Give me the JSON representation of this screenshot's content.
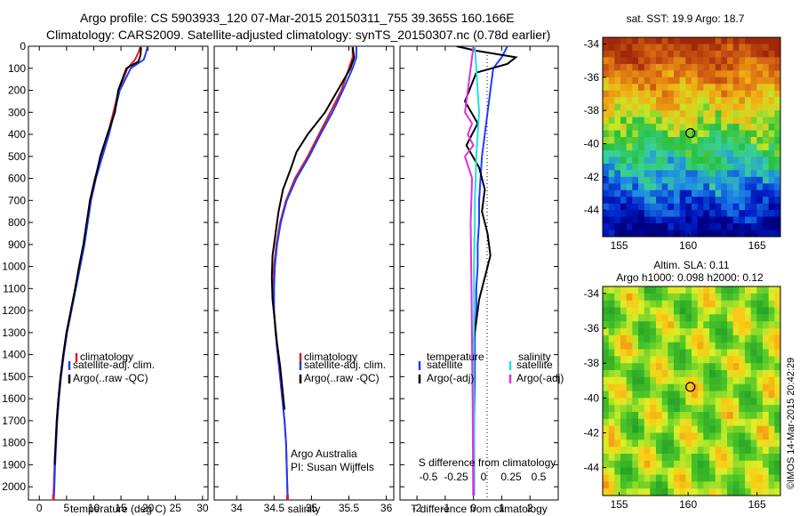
{
  "header": {
    "line1": "Argo profile: CS 5903933_120 07-Mar-2015 20150311_755 39.365S 160.166E",
    "line2": "Climatology: CARS2009. Satellite-adjusted climatology: synTS_20150307.nc (0.78d earlier)"
  },
  "map_titles": {
    "sst": "sat. SST: 19.9 Argo: 18.7",
    "sla_line1": "Altim. SLA: 0.11",
    "sla_line2": "Argo h1000: 0.098 h2000: 0.12"
  },
  "watermark": "©IMOS 14-Mar-2015 20:42:29",
  "credit": {
    "line1": "Argo Australia",
    "line2": "PI: Susan Wijffels"
  },
  "colors": {
    "climatology": "#e41a1c",
    "satellite": "#1f3cff",
    "argo": "#000000",
    "sat_salinity": "#22e0e0",
    "argo_salinity_adj": "#e030e0"
  },
  "icons": {
    "float_marker": "circle-marker-icon"
  },
  "chart_data": [
    {
      "type": "line",
      "panel": "temperature",
      "xlabel": "temperature (deg C)",
      "ylabel": "",
      "xlim": [
        -2,
        31
      ],
      "ylim": [
        2060,
        0
      ],
      "xticks": [
        0,
        5,
        10,
        15,
        20,
        25,
        30
      ],
      "yticks": [
        0,
        100,
        200,
        300,
        400,
        500,
        600,
        700,
        800,
        900,
        1000,
        1100,
        1200,
        1300,
        1400,
        1500,
        1600,
        1700,
        1800,
        1900,
        2000
      ],
      "legend": [
        "climatology",
        "satellite-adj. clim.",
        "Argo(..raw -QC)"
      ],
      "series": [
        {
          "name": "climatology",
          "color": "#e41a1c",
          "x": [
            18.6,
            18.2,
            17.6,
            16.2,
            14.6,
            13.6,
            12.6,
            11.4,
            10.2,
            9.3,
            8.8,
            8.2,
            7.4,
            6.6,
            5.8,
            5.0,
            4.4,
            3.9,
            3.5,
            3.2,
            3.0,
            2.8,
            2.6
          ],
          "y": [
            0,
            30,
            60,
            100,
            200,
            300,
            400,
            500,
            600,
            700,
            800,
            900,
            1000,
            1100,
            1200,
            1300,
            1400,
            1500,
            1600,
            1700,
            1800,
            1900,
            2040
          ]
        },
        {
          "name": "satellite-adj. clim.",
          "color": "#1f3cff",
          "x": [
            19.9,
            19.6,
            19.2,
            16.8,
            14.8,
            13.8,
            12.8,
            11.6,
            10.4,
            9.5,
            8.9,
            8.3,
            7.5,
            6.7,
            5.9,
            5.1,
            4.5,
            4.0,
            3.6,
            3.3,
            3.1,
            2.9,
            2.7
          ],
          "y": [
            0,
            30,
            60,
            100,
            200,
            300,
            400,
            500,
            600,
            700,
            800,
            900,
            1000,
            1100,
            1200,
            1300,
            1400,
            1500,
            1600,
            1700,
            1800,
            1900,
            2040
          ]
        },
        {
          "name": "Argo(..raw -QC)",
          "color": "#000000",
          "x": [
            18.7,
            18.6,
            18.2,
            16.0,
            14.5,
            13.9,
            12.5,
            11.2,
            10.3,
            9.3,
            8.7,
            8.1,
            7.3,
            6.6,
            5.8,
            5.0,
            4.4,
            3.9,
            3.5,
            3.2,
            3.0,
            2.8
          ],
          "y": [
            5,
            40,
            70,
            100,
            200,
            300,
            400,
            500,
            600,
            700,
            800,
            900,
            1000,
            1100,
            1200,
            1300,
            1400,
            1500,
            1600,
            1700,
            1800,
            1900
          ]
        }
      ]
    },
    {
      "type": "line",
      "panel": "salinity",
      "xlabel": "salinity",
      "xlim": [
        33.7,
        36.1
      ],
      "ylim": [
        2060,
        0
      ],
      "xticks": [
        34,
        34.5,
        35,
        35.5,
        36
      ],
      "legend": [
        "climatology",
        "satellite-adj. clim.",
        "Argo(..raw -QC)"
      ],
      "series": [
        {
          "name": "climatology",
          "color": "#e41a1c",
          "x": [
            35.55,
            35.55,
            35.5,
            35.4,
            35.25,
            35.1,
            34.95,
            34.78,
            34.66,
            34.58,
            34.53,
            34.5,
            34.49,
            34.5,
            34.52,
            34.55,
            34.58,
            34.61,
            34.64,
            34.66,
            34.68
          ],
          "y": [
            0,
            50,
            100,
            200,
            300,
            400,
            500,
            600,
            700,
            800,
            900,
            1000,
            1100,
            1200,
            1300,
            1400,
            1500,
            1600,
            1700,
            1800,
            2040
          ]
        },
        {
          "name": "satellite-adj. clim.",
          "color": "#1f3cff",
          "x": [
            35.6,
            35.6,
            35.55,
            35.42,
            35.28,
            35.12,
            34.97,
            34.8,
            34.67,
            34.59,
            34.54,
            34.51,
            34.5,
            34.5,
            34.52,
            34.55,
            34.58,
            34.61,
            34.64,
            34.66,
            34.68
          ],
          "y": [
            0,
            50,
            100,
            200,
            300,
            400,
            500,
            600,
            700,
            800,
            900,
            1000,
            1100,
            1200,
            1300,
            1400,
            1500,
            1600,
            1700,
            1800,
            2040
          ]
        },
        {
          "name": "Argo(..raw -QC)",
          "color": "#000000",
          "x": [
            35.55,
            35.57,
            35.52,
            35.35,
            35.18,
            34.95,
            34.8,
            34.72,
            34.62,
            34.56,
            34.52,
            34.48,
            34.47,
            34.48,
            34.51,
            34.54,
            34.58,
            34.61,
            34.64
          ],
          "y": [
            5,
            50,
            100,
            200,
            300,
            400,
            480,
            560,
            650,
            750,
            850,
            950,
            1050,
            1150,
            1250,
            1350,
            1450,
            1550,
            1650
          ]
        }
      ]
    },
    {
      "type": "line",
      "panel": "difference",
      "xlabel": "T difference from climatology",
      "secondary_xlabel": "S difference from climatology",
      "xlim": [
        -2.6,
        3.0
      ],
      "ylim": [
        2060,
        0
      ],
      "xticks": [
        -2,
        -1,
        0,
        1,
        2
      ],
      "secondary_xticks": [
        -0.5,
        -0.25,
        0,
        0.25,
        0.5
      ],
      "legend": {
        "temperature_heading": "temperature",
        "salinity_heading": "salinity",
        "entries": [
          "satellite",
          "Argo(-adj)",
          "satellite",
          "Argo(-adj)"
        ]
      },
      "series": [
        {
          "name": "satellite",
          "color": "#1f3cff",
          "x": [
            1.2,
            1.0,
            0.7,
            0.6,
            0.5,
            0.4,
            0.3,
            0.25,
            0.2,
            0.2,
            0.15,
            0.15,
            0.1,
            0.1,
            0.05,
            0.05,
            0.02,
            0.02
          ],
          "y": [
            0,
            50,
            100,
            200,
            300,
            400,
            500,
            600,
            700,
            800,
            900,
            1000,
            1100,
            1200,
            1300,
            1500,
            1700,
            2040
          ]
        },
        {
          "name": "Argo(-adj)",
          "color": "#000000",
          "x": [
            -0.6,
            0.1,
            1.5,
            1.2,
            0.1,
            -0.3,
            0.15,
            -0.25,
            0.2,
            0.4,
            0.3,
            0.5,
            0.6,
            0.4,
            0.2,
            0.1,
            0.0
          ],
          "y": [
            0,
            20,
            50,
            80,
            120,
            250,
            350,
            450,
            550,
            650,
            750,
            850,
            950,
            1050,
            1150,
            1250,
            1350
          ]
        },
        {
          "name": "satellite",
          "color": "#22e0e0",
          "x": [
            0.05,
            0.1,
            0.15,
            0.2,
            0.15,
            0.1,
            0.08,
            0.05,
            0.05,
            0.03,
            0.02,
            0.02,
            0.01,
            0.01,
            0.0
          ],
          "y": [
            0,
            100,
            200,
            300,
            400,
            500,
            600,
            700,
            800,
            900,
            1000,
            1200,
            1400,
            1700,
            2040
          ]
        },
        {
          "name": "Argo(-adj)",
          "color": "#e030e0",
          "x": [
            0.0,
            -0.1,
            -0.3,
            -0.05,
            -0.2,
            0.0,
            -0.3,
            -0.05,
            -0.1,
            -0.08,
            -0.06,
            -0.05,
            -0.03,
            -0.02,
            -0.01
          ],
          "y": [
            0,
            100,
            300,
            350,
            400,
            450,
            500,
            600,
            800,
            1000,
            1200,
            1400,
            1600,
            1800,
            2040
          ]
        }
      ]
    },
    {
      "type": "heatmap",
      "panel": "sst-map",
      "title": "sat. SST: 19.9 Argo: 18.7",
      "xlim": [
        153.8,
        166.7
      ],
      "ylim": [
        -45.6,
        -33.6
      ],
      "xticks": [
        155,
        160,
        165
      ],
      "yticks": [
        -34,
        -36,
        -38,
        -40,
        -42,
        -44
      ],
      "float_position": [
        160.166,
        -39.365
      ]
    },
    {
      "type": "heatmap",
      "panel": "sla-map",
      "title": "Altim. SLA: 0.11",
      "xlim": [
        153.8,
        166.7
      ],
      "ylim": [
        -45.6,
        -33.6
      ],
      "xticks": [
        155,
        160,
        165
      ],
      "yticks": [
        -34,
        -36,
        -38,
        -40,
        -42,
        -44
      ],
      "float_position": [
        160.166,
        -39.365
      ]
    }
  ]
}
